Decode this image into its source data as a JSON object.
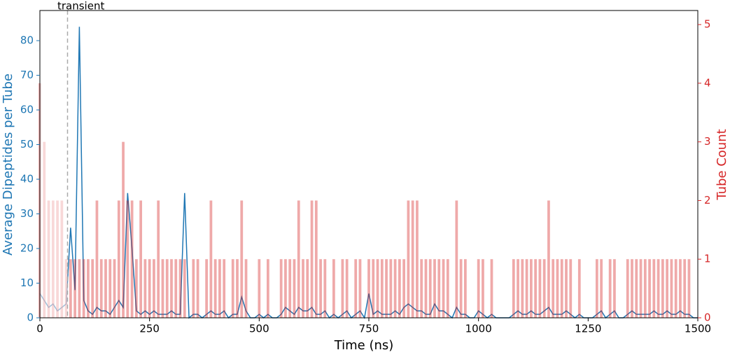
{
  "chart_data": {
    "type": "dual-axis",
    "xlabel": "Time (ns)",
    "ylabel": "Average Dipeptides per Tube",
    "y2label": "Tube Count",
    "annotation": {
      "text": "transient",
      "x": 63
    },
    "x": [
      0,
      10,
      20,
      30,
      40,
      50,
      60,
      70,
      80,
      90,
      100,
      110,
      120,
      130,
      140,
      150,
      160,
      170,
      180,
      190,
      200,
      210,
      220,
      230,
      240,
      250,
      260,
      270,
      280,
      290,
      300,
      310,
      320,
      330,
      340,
      350,
      360,
      370,
      380,
      390,
      400,
      410,
      420,
      430,
      440,
      450,
      460,
      470,
      480,
      490,
      500,
      510,
      520,
      530,
      540,
      550,
      560,
      570,
      580,
      590,
      600,
      610,
      620,
      630,
      640,
      650,
      660,
      670,
      680,
      690,
      700,
      710,
      720,
      730,
      740,
      750,
      760,
      770,
      780,
      790,
      800,
      810,
      820,
      830,
      840,
      850,
      860,
      870,
      880,
      890,
      900,
      910,
      920,
      930,
      940,
      950,
      960,
      970,
      980,
      990,
      1000,
      1010,
      1020,
      1030,
      1040,
      1050,
      1060,
      1070,
      1080,
      1090,
      1100,
      1110,
      1120,
      1130,
      1140,
      1150,
      1160,
      1170,
      1180,
      1190,
      1200,
      1210,
      1220,
      1230,
      1240,
      1250,
      1260,
      1270,
      1280,
      1290,
      1300,
      1310,
      1320,
      1330,
      1340,
      1350,
      1360,
      1370,
      1380,
      1390,
      1400,
      1410,
      1420,
      1430,
      1440,
      1450,
      1460,
      1470,
      1480,
      1490,
      1500
    ],
    "series": [
      {
        "name": "Average Dipeptides per Tube",
        "color": "#1f77b4",
        "axis": "y",
        "values": [
          7,
          5,
          3,
          4,
          2,
          3,
          4,
          26,
          8,
          84,
          5,
          2,
          1,
          3,
          2,
          2,
          1,
          3,
          5,
          3,
          36,
          20,
          2,
          1,
          2,
          1,
          2,
          1,
          1,
          1,
          2,
          1,
          1,
          36,
          0,
          1,
          1,
          0,
          1,
          2,
          1,
          1,
          2,
          0,
          1,
          1,
          6,
          2,
          0,
          0,
          1,
          0,
          1,
          0,
          0,
          1,
          3,
          2,
          1,
          3,
          2,
          2,
          3,
          1,
          1,
          2,
          0,
          1,
          0,
          1,
          2,
          0,
          1,
          2,
          0,
          7,
          1,
          2,
          1,
          1,
          1,
          2,
          1,
          3,
          4,
          3,
          2,
          2,
          1,
          1,
          4,
          2,
          2,
          1,
          0,
          3,
          1,
          1,
          0,
          0,
          2,
          1,
          0,
          1,
          0,
          0,
          0,
          0,
          1,
          2,
          1,
          1,
          2,
          1,
          1,
          2,
          3,
          1,
          1,
          1,
          2,
          1,
          0,
          1,
          0,
          0,
          0,
          1,
          2,
          0,
          1,
          2,
          0,
          0,
          1,
          2,
          1,
          1,
          1,
          1,
          2,
          1,
          1,
          2,
          1,
          1,
          2,
          1,
          1,
          0,
          0
        ]
      },
      {
        "name": "Tube Count",
        "color": "#d62728",
        "axis": "y2",
        "values": [
          4,
          3,
          2,
          2,
          2,
          2,
          1,
          1,
          1,
          1,
          1,
          1,
          1,
          2,
          1,
          1,
          1,
          1,
          2,
          3,
          2,
          2,
          1,
          2,
          1,
          1,
          1,
          2,
          1,
          1,
          1,
          1,
          1,
          1,
          0,
          1,
          1,
          0,
          1,
          2,
          1,
          1,
          1,
          0,
          1,
          1,
          2,
          1,
          0,
          0,
          1,
          0,
          1,
          0,
          0,
          1,
          1,
          1,
          1,
          2,
          1,
          1,
          2,
          2,
          1,
          1,
          0,
          1,
          0,
          1,
          1,
          0,
          1,
          1,
          0,
          1,
          1,
          1,
          1,
          1,
          1,
          1,
          1,
          1,
          2,
          2,
          2,
          1,
          1,
          1,
          1,
          1,
          1,
          1,
          0,
          2,
          1,
          1,
          0,
          0,
          1,
          1,
          0,
          1,
          0,
          0,
          0,
          0,
          1,
          1,
          1,
          1,
          1,
          1,
          1,
          1,
          2,
          1,
          1,
          1,
          1,
          1,
          0,
          1,
          0,
          0,
          0,
          1,
          1,
          0,
          1,
          1,
          0,
          0,
          1,
          1,
          1,
          1,
          1,
          1,
          1,
          1,
          1,
          1,
          1,
          1,
          1,
          1,
          1,
          0,
          0
        ]
      }
    ],
    "xlim": [
      0,
      1500
    ],
    "xticks": [
      0,
      250,
      500,
      750,
      1000,
      1250,
      1500
    ],
    "ylim": [
      0,
      88.7
    ],
    "yticks": [
      0,
      10,
      20,
      30,
      40,
      50,
      60,
      70,
      80
    ],
    "y2lim": [
      0,
      5.24
    ],
    "y2ticks": [
      0,
      1,
      2,
      3,
      4,
      5
    ]
  }
}
